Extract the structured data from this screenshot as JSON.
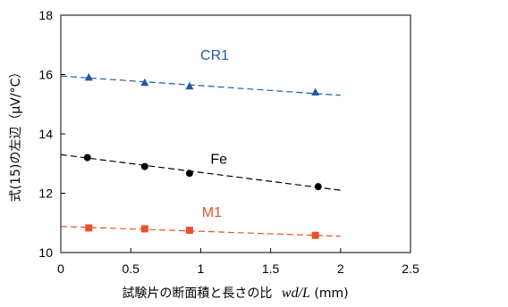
{
  "chart_data": {
    "type": "scatter",
    "xlabel_prefix": "試験片の断面積と長さの比",
    "xlabel_var": "wd/L",
    "xlabel_unit": "(mm)",
    "ylabel": "式(15)の左辺（μV/°C）",
    "xlim": [
      0,
      2.5
    ],
    "ylim": [
      10,
      18
    ],
    "x_ticks": [
      "0",
      "0.5",
      "1",
      "1.5",
      "2",
      "2.5"
    ],
    "y_ticks": [
      "10",
      "12",
      "14",
      "16",
      "18"
    ],
    "grid": false,
    "legend": "none",
    "series": [
      {
        "name": "CR1",
        "color": "#1f5aa6",
        "marker": "triangle",
        "x": [
          0.2,
          0.6,
          0.92,
          1.82
        ],
        "y": [
          15.9,
          15.72,
          15.6,
          15.4
        ],
        "trend": {
          "x": [
            0,
            2.0
          ],
          "y": [
            15.95,
            15.3
          ]
        }
      },
      {
        "name": "Fe",
        "color": "#000000",
        "marker": "circle",
        "x": [
          0.19,
          0.6,
          0.92,
          1.84
        ],
        "y": [
          13.2,
          12.9,
          12.67,
          12.22
        ],
        "trend": {
          "x": [
            0,
            2.0
          ],
          "y": [
            13.3,
            12.1
          ]
        }
      },
      {
        "name": "M1",
        "color": "#e8502a",
        "marker": "square",
        "x": [
          0.2,
          0.6,
          0.92,
          1.82
        ],
        "y": [
          10.83,
          10.8,
          10.75,
          10.58
        ],
        "trend": {
          "x": [
            0,
            2.0
          ],
          "y": [
            10.88,
            10.55
          ]
        }
      }
    ],
    "label_positions": [
      {
        "x": 1.1,
        "y": 16.5
      },
      {
        "x": 1.13,
        "y": 13.0
      },
      {
        "x": 1.08,
        "y": 11.2
      }
    ]
  }
}
